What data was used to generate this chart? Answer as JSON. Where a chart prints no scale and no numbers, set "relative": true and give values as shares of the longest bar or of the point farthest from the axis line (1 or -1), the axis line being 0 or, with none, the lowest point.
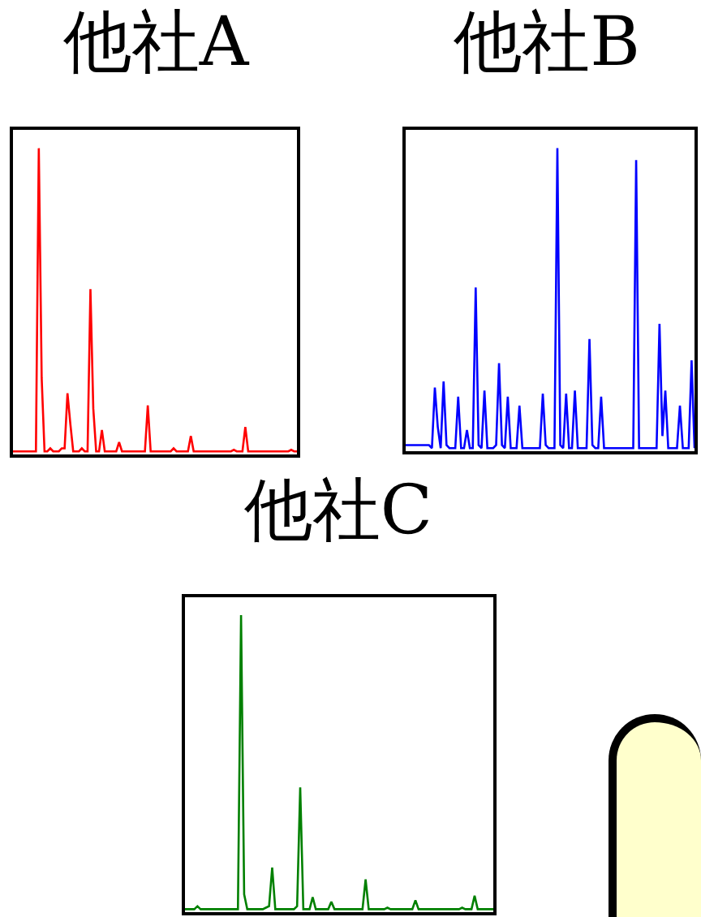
{
  "chart_data": [
    {
      "type": "line",
      "title": "他社A",
      "relative": true,
      "categories": [
        null,
        null,
        null,
        null,
        null,
        null,
        null,
        null,
        null,
        null,
        null,
        null,
        null,
        null,
        null,
        null,
        null,
        null,
        null,
        null,
        null,
        null,
        null,
        null,
        null,
        null,
        null,
        null,
        null,
        null,
        null,
        null,
        null,
        null,
        null,
        null,
        null,
        null,
        null,
        null,
        null,
        null,
        null,
        null,
        null,
        null,
        null,
        null,
        null,
        null,
        null,
        null,
        null,
        null,
        null,
        null,
        null,
        null,
        null,
        null,
        null,
        null,
        null,
        null,
        null,
        null,
        null,
        null,
        null,
        null,
        null,
        null,
        null,
        null,
        null,
        null,
        null,
        null,
        null,
        null,
        null,
        null,
        null,
        null,
        null,
        null,
        null,
        null,
        null,
        null,
        null,
        null,
        null,
        null,
        null,
        null,
        null,
        null,
        null,
        null
      ],
      "series": [
        {
          "color": "#ff0000",
          "values": [
            0.01,
            0.01,
            0.01,
            0.01,
            0.01,
            0.01,
            0.01,
            0.01,
            0.01,
            1,
            0.25,
            0.01,
            0.01,
            0.02,
            0.01,
            0.01,
            0.01,
            0.02,
            0.02,
            0.2,
            0.1,
            0.01,
            0.01,
            0.01,
            0.02,
            0.01,
            0.01,
            0.54,
            0.15,
            0.01,
            0.01,
            0.08,
            0.01,
            0.01,
            0.01,
            0.01,
            0.01,
            0.04,
            0.01,
            0.01,
            0.01,
            0.01,
            0.01,
            0.01,
            0.01,
            0.01,
            0.01,
            0.16,
            0.01,
            0.01,
            0.01,
            0.01,
            0.01,
            0.01,
            0.01,
            0.01,
            0.02,
            0.01,
            0.01,
            0.01,
            0.01,
            0.01,
            0.06,
            0.01,
            0.01,
            0.01,
            0.01,
            0.01,
            0.01,
            0.01,
            0.01,
            0.01,
            0.01,
            0.01,
            0.01,
            0.01,
            0.01,
            0.015,
            0.01,
            0.01,
            0.01,
            0.09,
            0.01,
            0.01,
            0.01,
            0.01,
            0.01,
            0.01,
            0.01,
            0.01,
            0.01,
            0.01,
            0.01,
            0.01,
            0.01,
            0.01,
            0.01,
            0.015,
            0.01,
            0.01
          ]
        }
      ]
    },
    {
      "type": "line",
      "title": "他社B",
      "relative": true,
      "categories": [
        null,
        null,
        null,
        null,
        null,
        null,
        null,
        null,
        null,
        null,
        null,
        null,
        null,
        null,
        null,
        null,
        null,
        null,
        null,
        null,
        null,
        null,
        null,
        null,
        null,
        null,
        null,
        null,
        null,
        null,
        null,
        null,
        null,
        null,
        null,
        null,
        null,
        null,
        null,
        null,
        null,
        null,
        null,
        null,
        null,
        null,
        null,
        null,
        null,
        null,
        null,
        null,
        null,
        null,
        null,
        null,
        null,
        null,
        null,
        null,
        null,
        null,
        null,
        null,
        null,
        null,
        null,
        null,
        null,
        null,
        null,
        null,
        null,
        null,
        null,
        null,
        null,
        null,
        null,
        null,
        null,
        null,
        null,
        null,
        null,
        null,
        null,
        null,
        null,
        null,
        null,
        null,
        null,
        null,
        null,
        null,
        null,
        null,
        null,
        null
      ],
      "series": [
        {
          "color": "#0000ff",
          "values": [
            0.02,
            0.02,
            0.02,
            0.02,
            0.02,
            0.02,
            0.02,
            0.02,
            0.02,
            0.01,
            0.21,
            0.08,
            0.01,
            0.23,
            0.02,
            0.01,
            0.01,
            0.01,
            0.18,
            0.01,
            0.01,
            0.07,
            0.01,
            0.01,
            0.54,
            0.02,
            0.01,
            0.2,
            0.01,
            0.01,
            0.01,
            0.02,
            0.29,
            0.02,
            0.01,
            0.18,
            0.01,
            0.01,
            0.01,
            0.15,
            0.01,
            0.01,
            0.01,
            0.01,
            0.01,
            0.01,
            0.01,
            0.19,
            0.02,
            0.01,
            0.01,
            0.01,
            1,
            0.02,
            0.01,
            0.19,
            0.01,
            0.01,
            0.2,
            0.01,
            0.01,
            0.01,
            0.01,
            0.37,
            0.02,
            0.01,
            0.01,
            0.18,
            0.01,
            0.01,
            0.01,
            0.01,
            0.01,
            0.01,
            0.01,
            0.01,
            0.01,
            0.01,
            0.01,
            0.96,
            0.01,
            0.01,
            0.01,
            0.01,
            0.01,
            0.01,
            0.01,
            0.42,
            0.05,
            0.2,
            0.01,
            0.01,
            0.01,
            0.01,
            0.15,
            0.01,
            0.01,
            0.01,
            0.3,
            0.01
          ]
        }
      ]
    },
    {
      "type": "line",
      "title": "他社C",
      "relative": true,
      "categories": [
        null,
        null,
        null,
        null,
        null,
        null,
        null,
        null,
        null,
        null,
        null,
        null,
        null,
        null,
        null,
        null,
        null,
        null,
        null,
        null,
        null,
        null,
        null,
        null,
        null,
        null,
        null,
        null,
        null,
        null,
        null,
        null,
        null,
        null,
        null,
        null,
        null,
        null,
        null,
        null,
        null,
        null,
        null,
        null,
        null,
        null,
        null,
        null,
        null,
        null,
        null,
        null,
        null,
        null,
        null,
        null,
        null,
        null,
        null,
        null,
        null,
        null,
        null,
        null,
        null,
        null,
        null,
        null,
        null,
        null,
        null,
        null,
        null,
        null,
        null,
        null,
        null,
        null,
        null,
        null,
        null,
        null,
        null,
        null,
        null,
        null,
        null,
        null,
        null,
        null,
        null,
        null,
        null,
        null,
        null,
        null,
        null,
        null,
        null,
        null
      ],
      "series": [
        {
          "color": "#008000",
          "values": [
            0.01,
            0.01,
            0.01,
            0.01,
            0.02,
            0.01,
            0.01,
            0.01,
            0.01,
            0.01,
            0.01,
            0.01,
            0.01,
            0.01,
            0.01,
            0.01,
            0.01,
            0.01,
            1,
            0.06,
            0.01,
            0.01,
            0.01,
            0.01,
            0.01,
            0.01,
            0.015,
            0.02,
            0.15,
            0.01,
            0.01,
            0.01,
            0.01,
            0.01,
            0.01,
            0.01,
            0.02,
            0.42,
            0.01,
            0.01,
            0.01,
            0.05,
            0.01,
            0.01,
            0.01,
            0.01,
            0.01,
            0.035,
            0.01,
            0.01,
            0.01,
            0.01,
            0.01,
            0.01,
            0.01,
            0.01,
            0.01,
            0.01,
            0.11,
            0.01,
            0.01,
            0.01,
            0.01,
            0.01,
            0.01,
            0.015,
            0.01,
            0.01,
            0.01,
            0.01,
            0.01,
            0.01,
            0.01,
            0.01,
            0.04,
            0.01,
            0.01,
            0.01,
            0.01,
            0.01,
            0.01,
            0.01,
            0.01,
            0.01,
            0.01,
            0.01,
            0.01,
            0.01,
            0.01,
            0.015,
            0.01,
            0.01,
            0.01,
            0.055,
            0.01,
            0.01,
            0.01,
            0.01,
            0.01,
            0.01
          ]
        }
      ]
    }
  ]
}
